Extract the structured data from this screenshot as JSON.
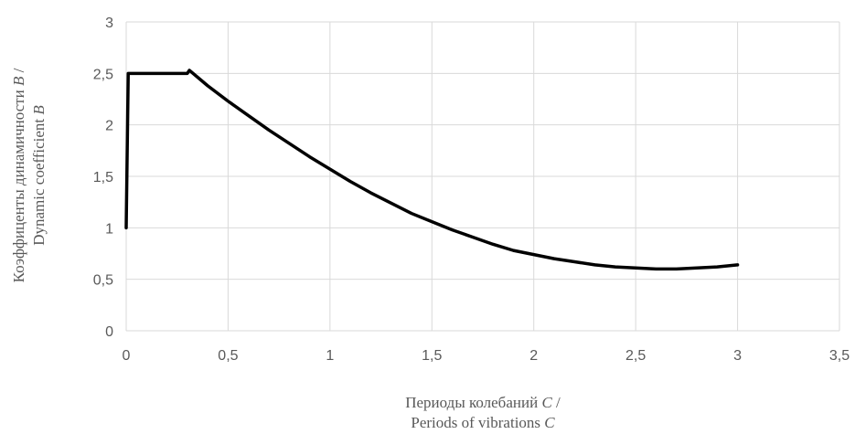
{
  "chart_data": {
    "type": "line",
    "xlabel": {
      "line1": "Периоды колебаний ",
      "line1_var": "C",
      "line1_suffix": " /",
      "line2": "Periods of vibrations ",
      "line2_var": "C"
    },
    "ylabel": {
      "line1": "Коэффиценты динамичности ",
      "line1_var": "B",
      "line1_suffix": " /",
      "line2": "Dynamic coefficient ",
      "line2_var": "B"
    },
    "xlim": [
      0,
      3.5
    ],
    "ylim": [
      0,
      3
    ],
    "x_ticks": [
      "0",
      "0,5",
      "1",
      "1,5",
      "2",
      "2,5",
      "3",
      "3,5"
    ],
    "y_ticks": [
      "0",
      "0,5",
      "1",
      "1,5",
      "2",
      "2,5",
      "3"
    ],
    "grid": true,
    "series": [
      {
        "color": "#000000",
        "x": [
          0,
          0.01,
          0.1,
          0.2,
          0.3,
          0.31,
          0.4,
          0.5,
          0.6,
          0.7,
          0.8,
          0.9,
          1.0,
          1.1,
          1.2,
          1.3,
          1.4,
          1.5,
          1.6,
          1.7,
          1.8,
          1.9,
          2.0,
          2.1,
          2.2,
          2.3,
          2.4,
          2.5,
          2.6,
          2.7,
          2.8,
          2.9,
          3.0
        ],
        "y": [
          1.0,
          2.5,
          2.5,
          2.5,
          2.5,
          2.53,
          2.38,
          2.23,
          2.09,
          1.95,
          1.82,
          1.69,
          1.57,
          1.45,
          1.34,
          1.24,
          1.14,
          1.06,
          0.98,
          0.91,
          0.84,
          0.78,
          0.74,
          0.7,
          0.67,
          0.64,
          0.62,
          0.61,
          0.6,
          0.6,
          0.61,
          0.62,
          0.64
        ]
      }
    ]
  }
}
